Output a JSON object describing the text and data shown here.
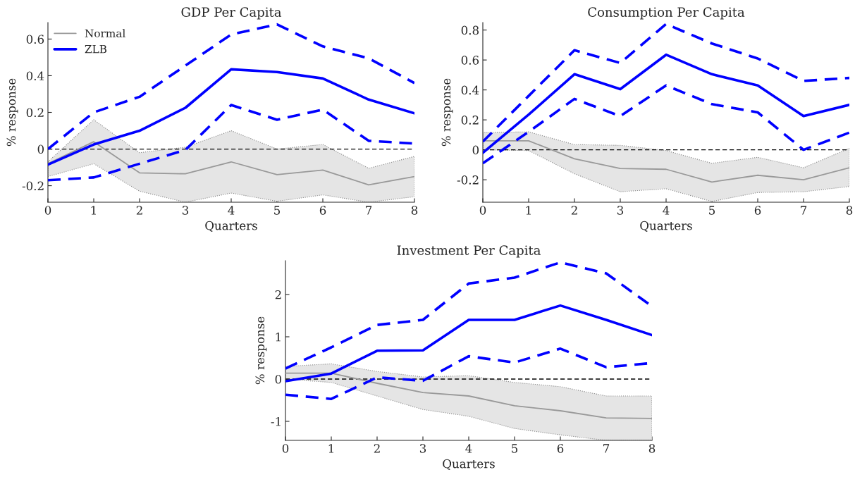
{
  "chart_data": [
    {
      "type": "line",
      "title": "GDP Per Capita",
      "xlabel": "Quarters",
      "ylabel": "% response",
      "x": [
        0,
        1,
        2,
        3,
        4,
        5,
        6,
        7,
        8
      ],
      "xlim": [
        0,
        8
      ],
      "xticks": [
        0,
        1,
        2,
        3,
        4,
        5,
        6,
        7,
        8
      ],
      "ylim": [
        -0.29,
        0.69
      ],
      "yticks": [
        -0.2,
        0,
        0.2,
        0.4,
        0.6
      ],
      "legend": "top left",
      "grid": false,
      "ref_lines": [
        {
          "axis": "y",
          "value": 0,
          "color": "#000000",
          "line_style": "dashed"
        }
      ],
      "series": [
        {
          "name": "Normal",
          "color": "#999999",
          "values": [
            -0.08,
            0.04,
            -0.13,
            -0.135,
            -0.07,
            -0.14,
            -0.115,
            -0.195,
            -0.15
          ],
          "lower": [
            -0.15,
            -0.08,
            -0.23,
            -0.29,
            -0.24,
            -0.285,
            -0.25,
            -0.29,
            -0.26
          ],
          "upper": [
            -0.07,
            0.16,
            -0.02,
            0.01,
            0.1,
            0.0,
            0.025,
            -0.105,
            -0.04
          ]
        },
        {
          "name": "ZLB",
          "color": "#0000ff",
          "values": [
            -0.085,
            0.025,
            0.1,
            0.225,
            0.435,
            0.42,
            0.385,
            0.27,
            0.195
          ]
        },
        {
          "color": "#0000ff",
          "line_style": "dashed",
          "values": [
            0.0,
            0.2,
            0.285,
            0.455,
            0.625,
            0.68,
            0.56,
            0.495,
            0.36
          ]
        },
        {
          "color": "#0000ff",
          "line_style": "dashed",
          "values": [
            -0.17,
            -0.155,
            -0.08,
            -0.005,
            0.24,
            0.16,
            0.215,
            0.045,
            0.03
          ]
        }
      ]
    },
    {
      "type": "line",
      "title": "Consumption Per Capita",
      "xlabel": "Quarters",
      "ylabel": "% response",
      "x": [
        0,
        1,
        2,
        3,
        4,
        5,
        6,
        7,
        8
      ],
      "xlim": [
        0,
        8
      ],
      "xticks": [
        0,
        1,
        2,
        3,
        4,
        5,
        6,
        7,
        8
      ],
      "ylim": [
        -0.35,
        0.85
      ],
      "yticks": [
        -0.2,
        0,
        0.2,
        0.4,
        0.6,
        0.8
      ],
      "grid": false,
      "ref_lines": [
        {
          "axis": "y",
          "value": 0,
          "color": "#000000",
          "line_style": "dashed"
        }
      ],
      "series": [
        {
          "color": "#999999",
          "values": [
            0.06,
            0.06,
            -0.06,
            -0.125,
            -0.13,
            -0.215,
            -0.17,
            -0.2,
            -0.12
          ],
          "lower": [
            0.0,
            -0.005,
            -0.16,
            -0.28,
            -0.26,
            -0.345,
            -0.285,
            -0.28,
            -0.245
          ],
          "upper": [
            0.115,
            0.12,
            0.035,
            0.03,
            -0.005,
            -0.09,
            -0.05,
            -0.12,
            0.01
          ]
        },
        {
          "color": "#0000ff",
          "values": [
            -0.02,
            0.235,
            0.505,
            0.405,
            0.635,
            0.505,
            0.43,
            0.225,
            0.3
          ]
        },
        {
          "color": "#0000ff",
          "line_style": "dashed",
          "values": [
            0.055,
            0.36,
            0.665,
            0.58,
            0.84,
            0.71,
            0.61,
            0.46,
            0.48
          ]
        },
        {
          "color": "#0000ff",
          "line_style": "dashed",
          "values": [
            -0.09,
            0.12,
            0.34,
            0.225,
            0.43,
            0.305,
            0.25,
            0.0,
            0.115
          ]
        }
      ]
    },
    {
      "type": "line",
      "title": "Investment Per Capita",
      "xlabel": "Quarters",
      "ylabel": "% response",
      "x": [
        0,
        1,
        2,
        3,
        4,
        5,
        6,
        7,
        8
      ],
      "xlim": [
        0,
        8
      ],
      "xticks": [
        0,
        1,
        2,
        3,
        4,
        5,
        6,
        7,
        8
      ],
      "ylim": [
        -1.45,
        2.8
      ],
      "yticks": [
        -1,
        0,
        1,
        2
      ],
      "grid": false,
      "ref_lines": [
        {
          "axis": "y",
          "value": 0,
          "color": "#000000",
          "line_style": "dashed"
        }
      ],
      "series": [
        {
          "color": "#999999",
          "values": [
            0.14,
            0.14,
            -0.1,
            -0.32,
            -0.4,
            -0.63,
            -0.75,
            -0.92,
            -0.93
          ],
          "lower": [
            0.0,
            -0.08,
            -0.4,
            -0.72,
            -0.88,
            -1.17,
            -1.32,
            -1.45,
            -1.45
          ],
          "upper": [
            0.3,
            0.36,
            0.18,
            0.05,
            0.08,
            -0.08,
            -0.18,
            -0.4,
            -0.4
          ]
        },
        {
          "color": "#0000ff",
          "values": [
            -0.05,
            0.13,
            0.67,
            0.68,
            1.4,
            1.4,
            1.74,
            1.4,
            1.04
          ]
        },
        {
          "color": "#0000ff",
          "line_style": "dashed",
          "values": [
            0.25,
            0.75,
            1.28,
            1.4,
            2.26,
            2.4,
            2.76,
            2.5,
            1.72
          ]
        },
        {
          "color": "#0000ff",
          "line_style": "dashed",
          "values": [
            -0.37,
            -0.47,
            0.04,
            -0.04,
            0.54,
            0.39,
            0.72,
            0.28,
            0.38
          ]
        }
      ]
    }
  ]
}
